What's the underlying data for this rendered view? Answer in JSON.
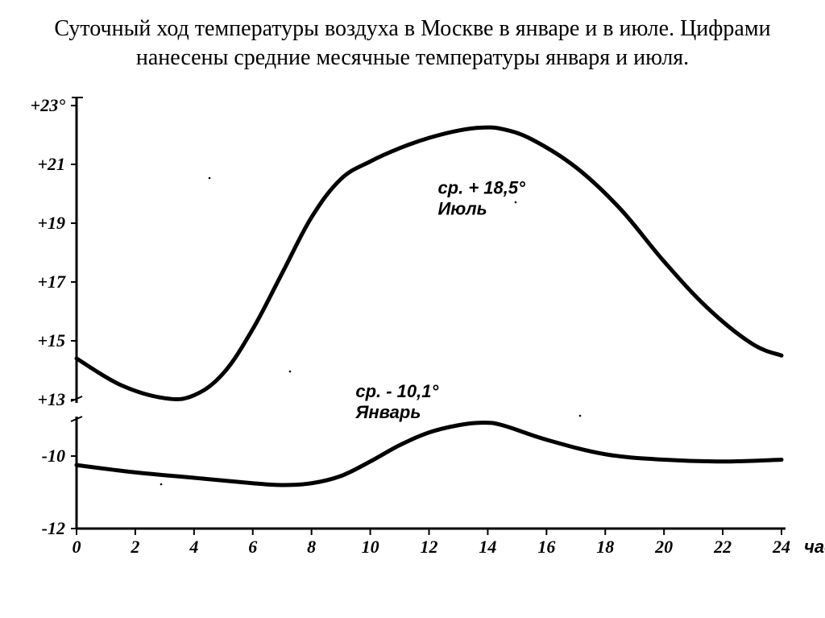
{
  "title": "Суточный ход температуры воздуха в Москве в январе и в июле. Цифрами нанесены средние месячные температуры января и июля.",
  "chart": {
    "type": "line",
    "background_color": "#ffffff",
    "axis_color": "#000000",
    "axis_width": 3,
    "line_color": "#000000",
    "line_width_july": 5,
    "line_width_january": 5,
    "font_color": "#000000",
    "tick_fontsize": 22,
    "annotation_fontsize": 22,
    "x": {
      "min": 0,
      "max": 24,
      "ticks": [
        0,
        2,
        4,
        6,
        8,
        10,
        12,
        14,
        16,
        18,
        20,
        22,
        24
      ],
      "tick_labels": [
        "0",
        "2",
        "4",
        "6",
        "8",
        "10",
        "12",
        "14",
        "16",
        "18",
        "20",
        "22",
        "24"
      ],
      "unit_label": "час."
    },
    "y_upper": {
      "min": 13,
      "max": 23,
      "ticks": [
        13,
        15,
        17,
        19,
        21,
        23
      ],
      "tick_labels": [
        "+13",
        "+15",
        "+17",
        "+19",
        "+21",
        "+23°"
      ]
    },
    "y_lower": {
      "min": -12,
      "max": -9,
      "ticks": [
        -12,
        -10
      ],
      "tick_labels": [
        "-12",
        "-10"
      ]
    },
    "series": {
      "july": {
        "label_line1": "ср. + 18,5°",
        "label_line2": "Июль",
        "label_x": 12.3,
        "label_y": 20.0,
        "points": [
          [
            0,
            14.4
          ],
          [
            1.5,
            13.5
          ],
          [
            3,
            13.05
          ],
          [
            4,
            13.15
          ],
          [
            5,
            13.9
          ],
          [
            6,
            15.4
          ],
          [
            7,
            17.3
          ],
          [
            8,
            19.2
          ],
          [
            9,
            20.5
          ],
          [
            10,
            21.1
          ],
          [
            11,
            21.55
          ],
          [
            12,
            21.9
          ],
          [
            13,
            22.15
          ],
          [
            13.8,
            22.25
          ],
          [
            14.5,
            22.2
          ],
          [
            15.5,
            21.85
          ],
          [
            17,
            20.9
          ],
          [
            18.5,
            19.5
          ],
          [
            20,
            17.7
          ],
          [
            21.5,
            16.1
          ],
          [
            23,
            14.9
          ],
          [
            24,
            14.5
          ]
        ]
      },
      "january": {
        "label_line1": "ср. - 10,1°",
        "label_line2": "Январь",
        "label_x": 9.5,
        "label_y": -9.1,
        "points": [
          [
            0,
            -10.25
          ],
          [
            2,
            -10.45
          ],
          [
            4,
            -10.6
          ],
          [
            6,
            -10.75
          ],
          [
            7,
            -10.8
          ],
          [
            8,
            -10.75
          ],
          [
            9,
            -10.55
          ],
          [
            10,
            -10.15
          ],
          [
            11,
            -9.7
          ],
          [
            12,
            -9.35
          ],
          [
            13,
            -9.15
          ],
          [
            13.8,
            -9.08
          ],
          [
            14.5,
            -9.15
          ],
          [
            16,
            -9.55
          ],
          [
            18,
            -9.95
          ],
          [
            20,
            -10.1
          ],
          [
            22,
            -10.15
          ],
          [
            24,
            -10.1
          ]
        ]
      }
    }
  }
}
